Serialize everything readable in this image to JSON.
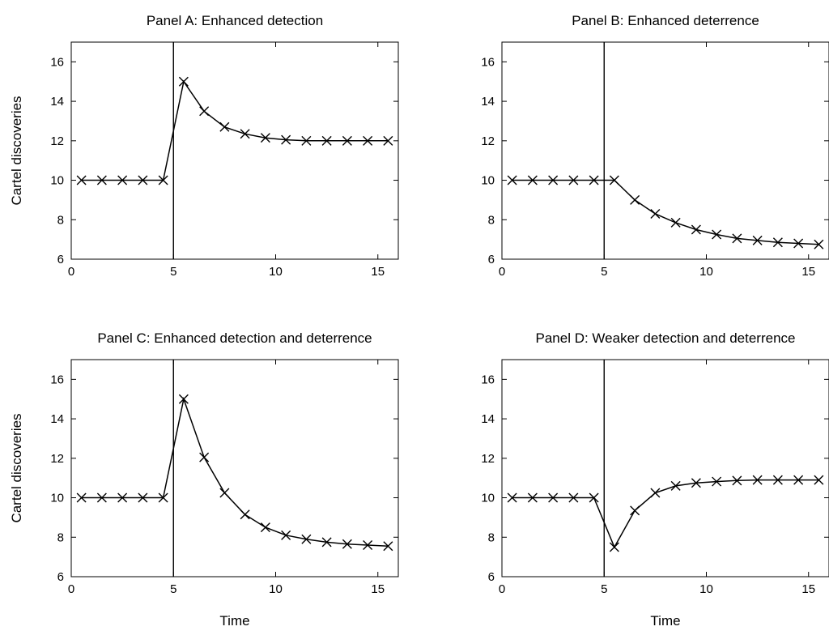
{
  "chart_data": [
    {
      "type": "line",
      "title": "Panel A: Enhanced detection",
      "xlabel": "",
      "ylabel": "Cartel discoveries",
      "xlim": [
        0,
        16
      ],
      "ylim": [
        6,
        17
      ],
      "x_ticks": [
        0,
        5,
        10,
        15
      ],
      "y_ticks": [
        6,
        8,
        10,
        12,
        14,
        16
      ],
      "vertical_line_x": 5,
      "marker": "x",
      "series": [
        {
          "x": [
            0.5,
            1.5,
            2.5,
            3.5,
            4.5,
            5.5,
            6.5,
            7.5,
            8.5,
            9.5,
            10.5,
            11.5,
            12.5,
            13.5,
            14.5,
            15.5
          ],
          "y": [
            10,
            10,
            10,
            10,
            10,
            15,
            13.5,
            12.7,
            12.35,
            12.15,
            12.05,
            12.0,
            12.0,
            12.0,
            12.0,
            12.0
          ]
        }
      ]
    },
    {
      "type": "line",
      "title": "Panel B: Enhanced deterrence",
      "xlabel": "",
      "ylabel": "",
      "xlim": [
        0,
        16
      ],
      "ylim": [
        6,
        17
      ],
      "x_ticks": [
        0,
        5,
        10,
        15
      ],
      "y_ticks": [
        6,
        8,
        10,
        12,
        14,
        16
      ],
      "vertical_line_x": 5,
      "marker": "x",
      "series": [
        {
          "x": [
            0.5,
            1.5,
            2.5,
            3.5,
            4.5,
            5.5,
            6.5,
            7.5,
            8.5,
            9.5,
            10.5,
            11.5,
            12.5,
            13.5,
            14.5,
            15.5
          ],
          "y": [
            10,
            10,
            10,
            10,
            10,
            10,
            9.0,
            8.3,
            7.85,
            7.5,
            7.25,
            7.05,
            6.95,
            6.85,
            6.8,
            6.75
          ]
        }
      ]
    },
    {
      "type": "line",
      "title": "Panel C: Enhanced detection and deterrence",
      "xlabel": "Time",
      "ylabel": "Cartel discoveries",
      "xlim": [
        0,
        16
      ],
      "ylim": [
        6,
        17
      ],
      "x_ticks": [
        0,
        5,
        10,
        15
      ],
      "y_ticks": [
        6,
        8,
        10,
        12,
        14,
        16
      ],
      "vertical_line_x": 5,
      "marker": "x",
      "series": [
        {
          "x": [
            0.5,
            1.5,
            2.5,
            3.5,
            4.5,
            5.5,
            6.5,
            7.5,
            8.5,
            9.5,
            10.5,
            11.5,
            12.5,
            13.5,
            14.5,
            15.5
          ],
          "y": [
            10,
            10,
            10,
            10,
            10,
            15,
            12.05,
            10.25,
            9.15,
            8.5,
            8.1,
            7.9,
            7.75,
            7.65,
            7.6,
            7.55
          ]
        }
      ]
    },
    {
      "type": "line",
      "title": "Panel D: Weaker detection and deterrence",
      "xlabel": "Time",
      "ylabel": "",
      "xlim": [
        0,
        16
      ],
      "ylim": [
        6,
        17
      ],
      "x_ticks": [
        0,
        5,
        10,
        15
      ],
      "y_ticks": [
        6,
        8,
        10,
        12,
        14,
        16
      ],
      "vertical_line_x": 5,
      "marker": "x",
      "series": [
        {
          "x": [
            0.5,
            1.5,
            2.5,
            3.5,
            4.5,
            5.5,
            6.5,
            7.5,
            8.5,
            9.5,
            10.5,
            11.5,
            12.5,
            13.5,
            14.5,
            15.5
          ],
          "y": [
            10,
            10,
            10,
            10,
            10,
            7.5,
            9.35,
            10.25,
            10.6,
            10.75,
            10.82,
            10.87,
            10.9,
            10.9,
            10.9,
            10.9
          ]
        }
      ]
    }
  ]
}
